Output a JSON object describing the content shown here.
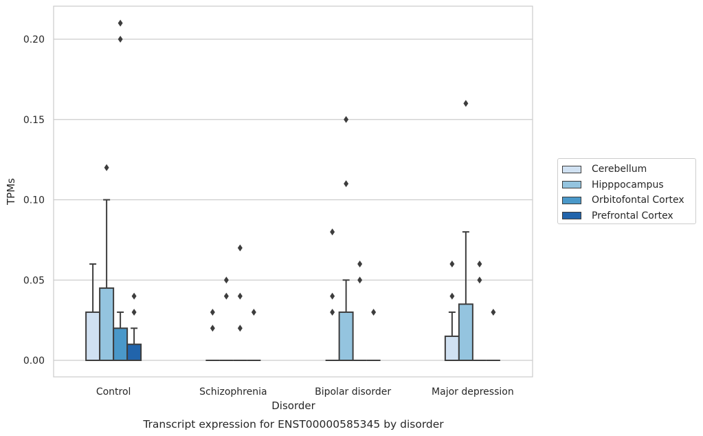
{
  "caption": "Transcript expression for ENST00000585345 by disorder",
  "chart_data": {
    "type": "box",
    "title": "",
    "xlabel": "Disorder",
    "ylabel": "TPMs",
    "ylim": [
      -0.01,
      0.22
    ],
    "yticks": [
      "0.00",
      "0.05",
      "0.10",
      "0.15",
      "0.20"
    ],
    "ytick_values": [
      0,
      0.05,
      0.1,
      0.15,
      0.2
    ],
    "grid": "horizontal",
    "legend_position": "right",
    "categories": [
      "Control",
      "Schizophrenia",
      "Bipolar disorder",
      "Major depression"
    ],
    "series": [
      {
        "name": "Cerebellum",
        "color": "#d0e1f2",
        "boxes": [
          {
            "q1": 0,
            "median": 0,
            "q3": 0.03,
            "whisker_low": 0,
            "whisker_high": 0.06,
            "outliers": []
          },
          {
            "q1": 0,
            "median": 0,
            "q3": 0,
            "whisker_low": 0,
            "whisker_high": 0,
            "outliers": [
              0.02,
              0.03
            ]
          },
          {
            "q1": 0,
            "median": 0,
            "q3": 0,
            "whisker_low": 0,
            "whisker_high": 0,
            "outliers": [
              0.03,
              0.04,
              0.08
            ]
          },
          {
            "q1": 0,
            "median": 0,
            "q3": 0.015,
            "whisker_low": 0,
            "whisker_high": 0.03,
            "outliers": [
              0.04,
              0.06
            ]
          }
        ]
      },
      {
        "name": "Hipppocampus",
        "color": "#94c4df",
        "boxes": [
          {
            "q1": 0,
            "median": 0,
            "q3": 0.045,
            "whisker_low": 0,
            "whisker_high": 0.1,
            "outliers": [
              0.12
            ]
          },
          {
            "q1": 0,
            "median": 0,
            "q3": 0,
            "whisker_low": 0,
            "whisker_high": 0,
            "outliers": [
              0.04,
              0.05
            ]
          },
          {
            "q1": 0,
            "median": 0,
            "q3": 0.03,
            "whisker_low": 0,
            "whisker_high": 0.05,
            "outliers": [
              0.11,
              0.15
            ]
          },
          {
            "q1": 0,
            "median": 0,
            "q3": 0.035,
            "whisker_low": 0,
            "whisker_high": 0.08,
            "outliers": [
              0.16
            ]
          }
        ]
      },
      {
        "name": "Orbitofontal Cortex",
        "color": "#4a98c9",
        "boxes": [
          {
            "q1": 0,
            "median": 0,
            "q3": 0.02,
            "whisker_low": 0,
            "whisker_high": 0.03,
            "outliers": [
              0.2,
              0.21
            ]
          },
          {
            "q1": 0,
            "median": 0,
            "q3": 0,
            "whisker_low": 0,
            "whisker_high": 0,
            "outliers": [
              0.02,
              0.04,
              0.07
            ]
          },
          {
            "q1": 0,
            "median": 0,
            "q3": 0,
            "whisker_low": 0,
            "whisker_high": 0,
            "outliers": [
              0.05,
              0.06
            ]
          },
          {
            "q1": 0,
            "median": 0,
            "q3": 0,
            "whisker_low": 0,
            "whisker_high": 0,
            "outliers": [
              0.05,
              0.06
            ]
          }
        ]
      },
      {
        "name": "Prefrontal Cortex",
        "color": "#2164ab",
        "boxes": [
          {
            "q1": 0,
            "median": 0,
            "q3": 0.01,
            "whisker_low": 0,
            "whisker_high": 0.02,
            "outliers": [
              0.03,
              0.04
            ]
          },
          {
            "q1": 0,
            "median": 0,
            "q3": 0,
            "whisker_low": 0,
            "whisker_high": 0,
            "outliers": [
              0.03
            ]
          },
          {
            "q1": 0,
            "median": 0,
            "q3": 0,
            "whisker_low": 0,
            "whisker_high": 0,
            "outliers": [
              0.03
            ]
          },
          {
            "q1": 0,
            "median": 0,
            "q3": 0,
            "whisker_low": 0,
            "whisker_high": 0,
            "outliers": [
              0.03
            ]
          }
        ]
      }
    ]
  }
}
